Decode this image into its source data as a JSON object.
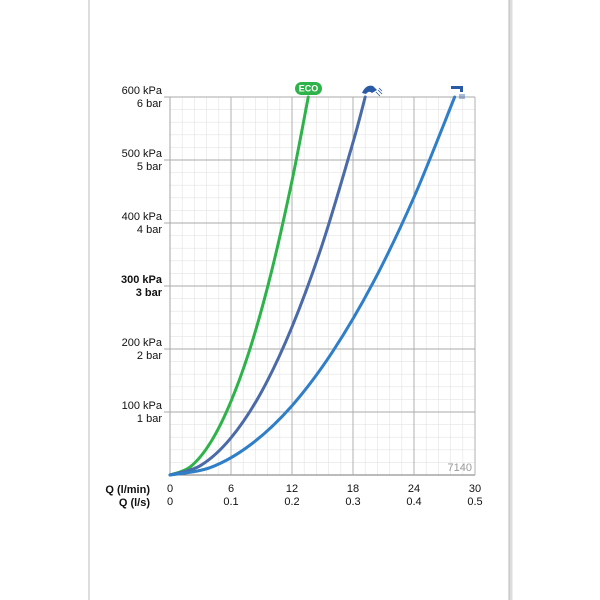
{
  "chart_data": {
    "type": "line",
    "x_label": "Q (l/min)",
    "x2_label": "Q (l/s)",
    "xlim": [
      0,
      30
    ],
    "xticks": [
      0,
      6,
      12,
      18,
      24,
      30
    ],
    "x2lim": [
      0,
      0.5
    ],
    "x2ticks": [
      0,
      0.1,
      0.2,
      0.3,
      0.4,
      0.5
    ],
    "ylim": [
      0,
      600
    ],
    "yticks": [
      {
        "value": 100,
        "label": "100 kPa"
      },
      {
        "value": 200,
        "label": "200 kPa"
      },
      {
        "value": 300,
        "label": "300 kPa"
      },
      {
        "value": 400,
        "label": "400 kPa"
      },
      {
        "value": 500,
        "label": "500 kPa"
      },
      {
        "value": 600,
        "label": "600 kPa"
      }
    ],
    "y2lim": [
      0,
      6
    ],
    "y2ticks": [
      {
        "value": 1,
        "label": "1 bar"
      },
      {
        "value": 2,
        "label": "2 bar"
      },
      {
        "value": 3,
        "label": "3 bar"
      },
      {
        "value": 4,
        "label": "4 bar"
      },
      {
        "value": 5,
        "label": "5 bar"
      },
      {
        "value": 6,
        "label": "6 bar"
      }
    ],
    "grid": true,
    "annotation": "7140",
    "series": [
      {
        "name": "ECO",
        "color": "#2db34a",
        "x": [
          0,
          2,
          4,
          6,
          8,
          10,
          12,
          13.6
        ],
        "values": [
          0,
          13,
          52,
          117,
          207,
          324,
          467,
          600
        ]
      },
      {
        "color": "#4a6aa8",
        "x": [
          0,
          3,
          6,
          9,
          12,
          15,
          18,
          19.2
        ],
        "values": [
          0,
          15,
          59,
          132,
          235,
          367,
          528,
          600
        ]
      },
      {
        "color": "#2f7fc8",
        "x": [
          0,
          4,
          8,
          12,
          16,
          20,
          24,
          28
        ],
        "values": [
          0,
          12,
          49,
          110,
          196,
          306,
          441,
          600
        ]
      }
    ]
  }
}
